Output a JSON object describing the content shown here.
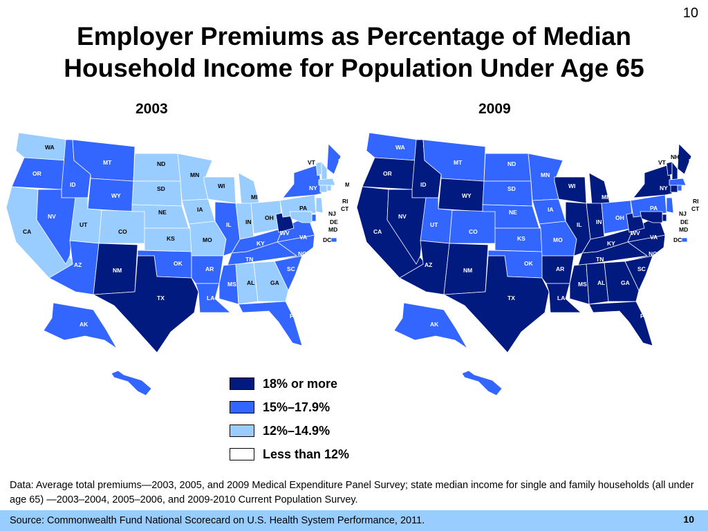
{
  "page_number": "10",
  "title_line1": "Employer Premiums as Percentage of Median",
  "title_line2": "Household Income for Population Under Age 65",
  "colors": {
    "cat18plus": "#001a80",
    "cat15to179": "#3366ff",
    "cat12to149": "#99ccff",
    "catUnder12": "#ffffff",
    "footer_bg": "#99ccff"
  },
  "legend": [
    {
      "label": "18% or more",
      "category": "cat18plus"
    },
    {
      "label": "15%–17.9%",
      "category": "cat15to179"
    },
    {
      "label": "12%–14.9%",
      "category": "cat12to149"
    },
    {
      "label": "Less than 12%",
      "category": "catUnder12"
    }
  ],
  "maps": [
    {
      "year": "2003",
      "states": {
        "WA": "cat12to149",
        "OR": "cat15to179",
        "CA": "cat12to149",
        "ID": "cat15to179",
        "NV": "cat15to179",
        "MT": "cat15to179",
        "WY": "cat15to179",
        "UT": "cat12to149",
        "AZ": "cat15to179",
        "CO": "cat12to149",
        "NM": "cat18plus",
        "ND": "cat12to149",
        "SD": "cat12to149",
        "NE": "cat12to149",
        "KS": "cat12to149",
        "OK": "cat15to179",
        "TX": "cat18plus",
        "MN": "cat12to149",
        "IA": "cat12to149",
        "MO": "cat12to149",
        "AR": "cat15to179",
        "LA": "cat15to179",
        "WI": "cat12to149",
        "IL": "cat15to179",
        "MI": "cat12to149",
        "IN": "cat12to149",
        "OH": "cat12to149",
        "KY": "cat15to179",
        "TN": "cat15to179",
        "MS": "cat15to179",
        "AL": "cat12to149",
        "GA": "cat12to149",
        "FL": "cat15to179",
        "SC": "cat15to179",
        "NC": "cat15to179",
        "VA": "cat15to179",
        "WV": "cat18plus",
        "PA": "cat12to149",
        "NY": "cat15to179",
        "ME": "cat15to179",
        "VT": "cat12to149",
        "NH": "cat12to149",
        "MA": "cat12to149",
        "CT": "cat12to149",
        "RI": "cat12to149",
        "NJ": "cat12to149",
        "DE": "cat15to179",
        "MD": "cat12to149",
        "DC": "cat15to179",
        "AK": "cat15to179",
        "HI": "cat15to179"
      }
    },
    {
      "year": "2009",
      "states": {
        "WA": "cat15to179",
        "OR": "cat18plus",
        "CA": "cat18plus",
        "ID": "cat18plus",
        "NV": "cat18plus",
        "MT": "cat15to179",
        "WY": "cat18plus",
        "UT": "cat15to179",
        "AZ": "cat18plus",
        "CO": "cat15to179",
        "NM": "cat18plus",
        "ND": "cat15to179",
        "SD": "cat15to179",
        "NE": "cat15to179",
        "KS": "cat15to179",
        "OK": "cat15to179",
        "TX": "cat18plus",
        "MN": "cat15to179",
        "IA": "cat15to179",
        "MO": "cat15to179",
        "AR": "cat18plus",
        "LA": "cat18plus",
        "WI": "cat18plus",
        "IL": "cat18plus",
        "MI": "cat18plus",
        "IN": "cat18plus",
        "OH": "cat15to179",
        "KY": "cat18plus",
        "TN": "cat18plus",
        "MS": "cat18plus",
        "AL": "cat18plus",
        "GA": "cat18plus",
        "FL": "cat18plus",
        "SC": "cat18plus",
        "NC": "cat18plus",
        "VA": "cat18plus",
        "WV": "cat18plus",
        "PA": "cat15to179",
        "NY": "cat18plus",
        "ME": "cat18plus",
        "VT": "cat18plus",
        "NH": "cat18plus",
        "MA": "cat15to179",
        "CT": "cat18plus",
        "RI": "cat15to179",
        "NJ": "cat15to179",
        "DE": "cat18plus",
        "MD": "cat18plus",
        "DC": "cat15to179",
        "AK": "cat15to179",
        "HI": "cat15to179"
      }
    }
  ],
  "data_note": "Data: Average total premiums—2003, 2005, and 2009 Medical Expenditure Panel Survey; state median income for single and family households (all under age 65) —2003–2004, 2005–2006, and 2009-2010 Current Population Survey.",
  "source": "Source: Commonwealth Fund National Scorecard on U.S. Health System Performance, 2011.",
  "footer_page_number": "10"
}
